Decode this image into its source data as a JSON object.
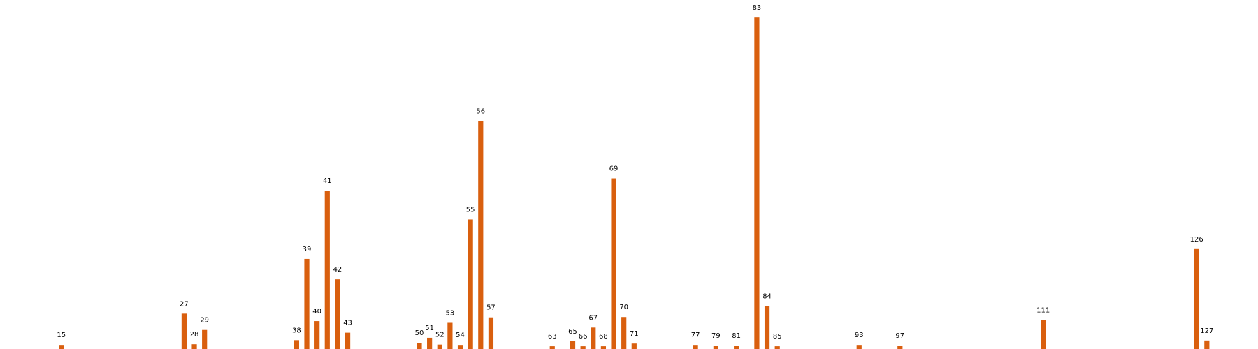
{
  "chart_data": {
    "type": "bar",
    "title": "",
    "xlabel": "",
    "ylabel": "",
    "grid": false,
    "axes_visible": false,
    "bar_color": "#d95f0e",
    "x_range": [
      9,
      132
    ],
    "ylim": [
      0,
      100
    ],
    "categories": [
      15,
      27,
      28,
      29,
      38,
      39,
      40,
      41,
      42,
      43,
      50,
      51,
      52,
      53,
      54,
      55,
      56,
      57,
      63,
      65,
      66,
      67,
      68,
      69,
      70,
      71,
      77,
      79,
      81,
      83,
      84,
      85,
      93,
      97,
      111,
      126,
      127
    ],
    "values": [
      1.2,
      10.4,
      1.4,
      5.6,
      2.6,
      26.5,
      8.2,
      46.6,
      20.5,
      4.8,
      1.8,
      3.3,
      1.3,
      7.7,
      1.2,
      38.1,
      67.0,
      9.3,
      0.8,
      2.3,
      0.8,
      6.3,
      0.8,
      50.2,
      9.4,
      1.6,
      1.2,
      1.0,
      1.0,
      97.5,
      12.6,
      0.8,
      1.2,
      1.0,
      8.5,
      29.4,
      2.5
    ]
  }
}
